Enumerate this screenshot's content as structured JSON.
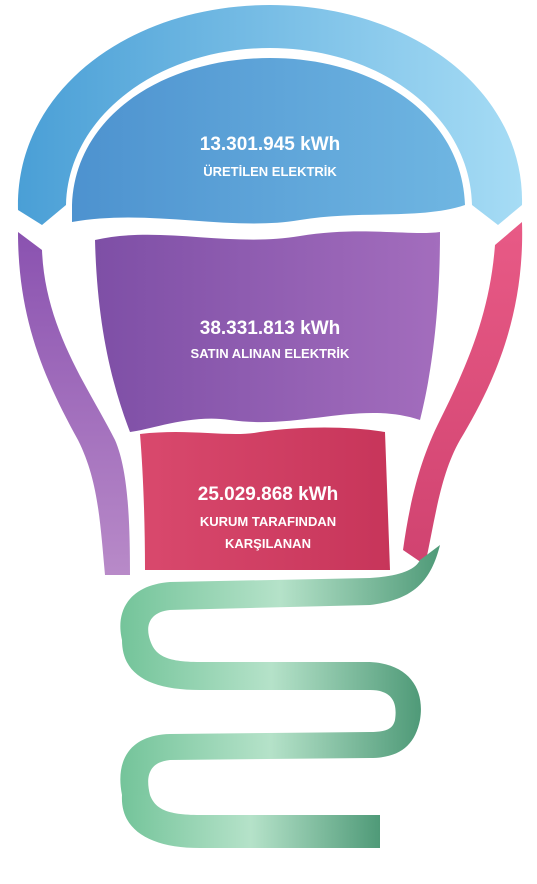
{
  "segments": [
    {
      "value": "13.301.945 kWh",
      "label": "ÜRETİLEN ELEKTRİK"
    },
    {
      "value": "38.331.813 kWh",
      "label": "SATIN ALINAN ELEKTRİK"
    },
    {
      "value": "25.029.868 kWh",
      "label": "KURUM TARAFINDAN KARŞILANAN"
    }
  ]
}
